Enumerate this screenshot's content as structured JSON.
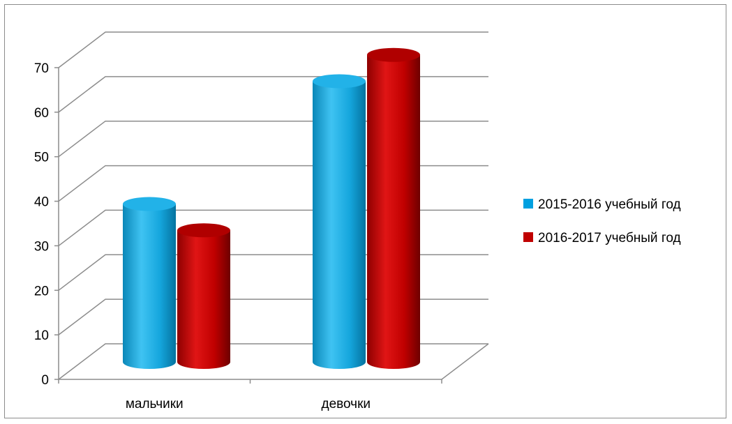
{
  "chart_data": {
    "type": "bar",
    "categories": [
      "мальчики",
      "девочки"
    ],
    "series": [
      {
        "name": "2015-2016 учебный год",
        "values": [
          36,
          64
        ],
        "color": "#00a0e0"
      },
      {
        "name": "2016-2017 учебный год",
        "values": [
          30,
          70
        ],
        "color": "#c00000"
      }
    ],
    "yticks": [
      0,
      10,
      20,
      30,
      40,
      50,
      60,
      70
    ],
    "ylim": [
      0,
      70
    ],
    "grid": true,
    "legend_position": "right",
    "style": "3d-cylinder"
  }
}
